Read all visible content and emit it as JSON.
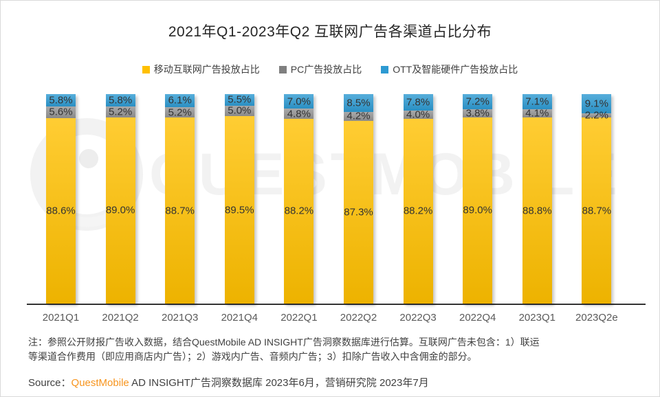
{
  "title": "2021年Q1-2023年Q2 互联网广告各渠道占比分布",
  "legend": [
    {
      "label": "移动互联网广告投放占比",
      "color": "#FFC000"
    },
    {
      "label": "PC广告投放占比",
      "color": "#7F7F7F"
    },
    {
      "label": "OTT及智能硬件广告投放占比",
      "color": "#2D9AD2"
    }
  ],
  "watermark": {
    "text": "QUESTMOBILE"
  },
  "chart_data": {
    "type": "bar",
    "stacked": true,
    "title": "2021年Q1-2023年Q2 互联网广告各渠道占比分布",
    "xlabel": "",
    "ylabel": "",
    "ylim": [
      0,
      100
    ],
    "grid": false,
    "legend_position": "top",
    "value_suffix": "%",
    "categories": [
      "2021Q1",
      "2021Q2",
      "2021Q3",
      "2021Q4",
      "2022Q1",
      "2022Q2",
      "2022Q3",
      "2022Q4",
      "2023Q1",
      "2023Q2e"
    ],
    "series": [
      {
        "name": "移动互联网广告投放占比",
        "color": "#FFC000",
        "values": [
          88.6,
          89.0,
          88.7,
          89.5,
          88.2,
          87.3,
          88.2,
          89.0,
          88.8,
          88.7
        ]
      },
      {
        "name": "PC广告投放占比",
        "color": "#949494",
        "values": [
          5.6,
          5.2,
          5.2,
          5.0,
          4.8,
          4.2,
          4.0,
          3.8,
          4.1,
          2.2
        ]
      },
      {
        "name": "OTT及智能硬件广告投放占比",
        "color": "#2D9AD2",
        "values": [
          5.8,
          5.8,
          6.1,
          5.5,
          7.0,
          8.5,
          7.8,
          7.2,
          7.1,
          9.1
        ]
      }
    ]
  },
  "note": {
    "lines": [
      "注：参照公开财报广告收入数据，结合QuestMobile AD INSIGHT广告洞察数据库进行估算。互联网广告未包含：1）联运",
      "等渠道合作费用（即应用商店内广告）；2）游戏内广告、音频内广告；3）扣除广告收入中含佣金的部分。"
    ]
  },
  "source": {
    "prefix": "Source：",
    "brand": "QuestMobile",
    "rest": " AD INSIGHT广告洞察数据库 2023年6月，营销研究院 2023年7月",
    "brand_color": "#F7941D"
  }
}
